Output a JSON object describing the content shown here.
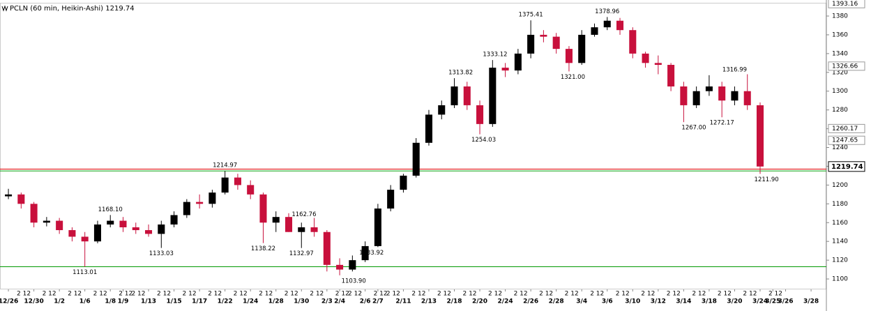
{
  "chart_data": {
    "type": "candlestick",
    "title": "PCLN (60 min, Heikin-Ashi) 1219.74",
    "ylim": [
      1088.9,
      1394.1
    ],
    "yticks": [
      1100,
      1120,
      1140,
      1160,
      1180,
      1200,
      1220,
      1240,
      1260,
      1280,
      1300,
      1320,
      1340,
      1360,
      1380
    ],
    "xlim": [
      -0.66,
      64.2
    ],
    "xticks": [
      {
        "value": 0,
        "label": "12/26"
      },
      {
        "value": 2,
        "label": "12/30"
      },
      {
        "value": 4,
        "label": "1/2"
      },
      {
        "value": 6,
        "label": "1/6"
      },
      {
        "value": 8,
        "label": "1/8"
      },
      {
        "value": 9,
        "label": "1/9"
      },
      {
        "value": 11,
        "label": "1/13"
      },
      {
        "value": 13,
        "label": "1/15"
      },
      {
        "value": 15,
        "label": "1/17"
      },
      {
        "value": 17,
        "label": "1/22"
      },
      {
        "value": 19,
        "label": "1/24"
      },
      {
        "value": 21,
        "label": "1/28"
      },
      {
        "value": 23,
        "label": "1/30"
      },
      {
        "value": 25,
        "label": "2/3"
      },
      {
        "value": 26,
        "label": "2/4"
      },
      {
        "value": 28,
        "label": "2/6"
      },
      {
        "value": 29,
        "label": "2/7"
      },
      {
        "value": 31,
        "label": "2/11"
      },
      {
        "value": 33,
        "label": "2/13"
      },
      {
        "value": 35,
        "label": "2/18"
      },
      {
        "value": 37,
        "label": "2/20"
      },
      {
        "value": 39,
        "label": "2/24"
      },
      {
        "value": 41,
        "label": "2/26"
      },
      {
        "value": 43,
        "label": "2/28"
      },
      {
        "value": 45,
        "label": "3/4"
      },
      {
        "value": 47,
        "label": "3/6"
      },
      {
        "value": 49,
        "label": "3/10"
      },
      {
        "value": 51,
        "label": "3/12"
      },
      {
        "value": 53,
        "label": "3/14"
      },
      {
        "value": 55,
        "label": "3/18"
      },
      {
        "value": 57,
        "label": "3/20"
      },
      {
        "value": 59,
        "label": "3/24"
      },
      {
        "value": 60,
        "label": "3/25"
      },
      {
        "value": 61,
        "label": "3/26"
      },
      {
        "value": 63,
        "label": "3/28"
      }
    ],
    "hour_label": "2 12",
    "up_color": "#000000",
    "down_color": "#c8103c",
    "open": [
      1188,
      1190,
      1180,
      1160,
      1162,
      1152,
      1145,
      1140,
      1158,
      1162,
      1155,
      1152,
      1148,
      1158,
      1168,
      1182,
      1180,
      1192,
      1208,
      1200,
      1190,
      1160,
      1166,
      1150,
      1155,
      1150,
      1115,
      1110,
      1120,
      1135,
      1175,
      1195,
      1210,
      1245,
      1275,
      1285,
      1305,
      1285,
      1265,
      1325,
      1322,
      1340,
      1360,
      1358,
      1345,
      1330,
      1360,
      1368,
      1375,
      1365,
      1340,
      1330,
      1328,
      1305,
      1285,
      1300,
      1305,
      1290,
      1300,
      1285
    ],
    "high": [
      1196,
      1192,
      1182,
      1166,
      1165,
      1155,
      1150,
      1162,
      1168.1,
      1166,
      1160,
      1158,
      1162,
      1172,
      1185,
      1190,
      1195,
      1214.97,
      1212,
      1205,
      1192,
      1172,
      1170,
      1160,
      1165,
      1152,
      1122,
      1125,
      1140,
      1180,
      1200,
      1212,
      1250,
      1280,
      1290,
      1313.82,
      1310,
      1290,
      1333.12,
      1330,
      1345,
      1375.41,
      1365,
      1362,
      1348,
      1365,
      1372,
      1378.96,
      1378,
      1368,
      1342,
      1338,
      1330,
      1310,
      1305,
      1316.99,
      1310,
      1305,
      1318,
      1288
    ],
    "low": [
      1185,
      1175,
      1155,
      1156,
      1148,
      1140,
      1113.01,
      1138,
      1155,
      1150,
      1148,
      1145,
      1133.03,
      1155,
      1165,
      1175,
      1176,
      1190,
      1195,
      1185,
      1138.22,
      1150,
      1150,
      1132.97,
      1145,
      1108,
      1103.9,
      1108,
      1118,
      1133.92,
      1172,
      1192,
      1208,
      1242,
      1270,
      1282,
      1280,
      1254.03,
      1262,
      1315,
      1318,
      1335,
      1352,
      1340,
      1321,
      1328,
      1358,
      1365,
      1360,
      1335,
      1325,
      1318,
      1300,
      1267,
      1282,
      1295,
      1272.17,
      1285,
      1280,
      1211.9
    ],
    "close": [
      1190,
      1180,
      1160,
      1162,
      1152,
      1145,
      1140,
      1158,
      1162,
      1155,
      1152,
      1148,
      1158,
      1168,
      1182,
      1180,
      1192,
      1208,
      1200,
      1190,
      1160,
      1166,
      1150,
      1155,
      1150,
      1115,
      1110,
      1120,
      1135,
      1175,
      1195,
      1210,
      1245,
      1275,
      1285,
      1305,
      1285,
      1265,
      1325,
      1322,
      1340,
      1360,
      1358,
      1345,
      1330,
      1360,
      1368,
      1375,
      1365,
      1340,
      1330,
      1328,
      1305,
      1285,
      1300,
      1305,
      1290,
      1300,
      1285,
      1219.74
    ],
    "annotations": [
      {
        "x": 6,
        "y": 1113.01
      },
      {
        "x": 8,
        "y": 1168.1,
        "label": "1168.10"
      },
      {
        "x": 12,
        "y": 1133.03
      },
      {
        "x": 17,
        "y": 1214.97
      },
      {
        "x": 20,
        "y": 1138.22
      },
      {
        "x": 23.2,
        "y": 1162.76
      },
      {
        "x": 23,
        "y": 1132.97
      },
      {
        "x": 27.1,
        "y": 1103.9,
        "label": "1103.90"
      },
      {
        "x": 28.5,
        "y": 1133.92
      },
      {
        "x": 35.5,
        "y": 1313.82
      },
      {
        "x": 37.3,
        "y": 1254.03
      },
      {
        "x": 38.2,
        "y": 1333.12
      },
      {
        "x": 41,
        "y": 1375.41
      },
      {
        "x": 44.3,
        "y": 1321,
        "label": "1321.00"
      },
      {
        "x": 47,
        "y": 1378.96
      },
      {
        "x": 53.8,
        "y": 1267,
        "label": "1267.00"
      },
      {
        "x": 56,
        "y": 1272.17
      },
      {
        "x": 57,
        "y": 1316.99
      },
      {
        "x": 59.5,
        "y": 1211.9,
        "label": "1211.90"
      }
    ],
    "levels": [
      {
        "value": 1217,
        "color": "#e00000"
      },
      {
        "value": 1215,
        "color": "#009900"
      },
      {
        "value": 1113,
        "color": "#009900"
      }
    ],
    "price_markers": [
      1393.16,
      1326.66,
      1260.17,
      1247.65
    ],
    "last_price": 1219.74
  }
}
